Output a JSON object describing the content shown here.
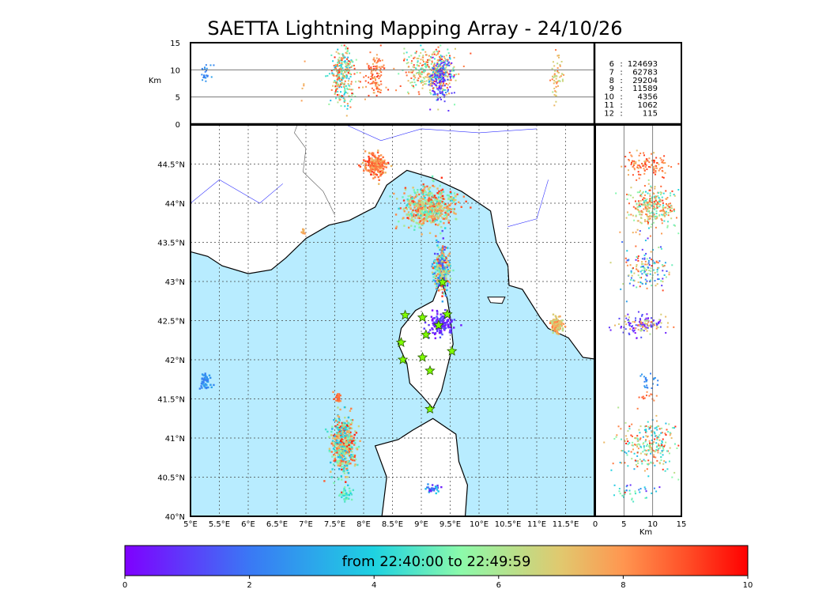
{
  "title": "SAETTA Lightning Mapping Array - 24/10/26",
  "chart_data": {
    "type": "scatter",
    "title": "SAETTA Lightning Mapping Array - 24/10/26",
    "map": {
      "lon_range": [
        5.0,
        12.0
      ],
      "lat_range": [
        40.0,
        45.0
      ],
      "lon_ticks": [
        "5°E",
        "5.5°E",
        "6°E",
        "6.5°E",
        "7°E",
        "7.5°E",
        "8°E",
        "8.5°E",
        "9°E",
        "9.5°E",
        "10°E",
        "10.5°E",
        "11°E",
        "11.5°E"
      ],
      "lat_ticks": [
        "40°N",
        "40.5°N",
        "41°N",
        "41.5°N",
        "42°N",
        "42.5°N",
        "43°N",
        "43.5°N",
        "44°N",
        "44.5°N"
      ],
      "grid": true
    },
    "altitude_panel": {
      "ylabel": "Km",
      "ylim": [
        0,
        15
      ],
      "yticks": [
        "0",
        "5",
        "10",
        "15"
      ]
    },
    "side_panel": {
      "xlabel": "Km",
      "xlim": [
        0,
        15
      ],
      "xticks": [
        "0",
        "5",
        "10",
        "15"
      ]
    },
    "stations": [
      {
        "lon": 8.72,
        "lat": 42.57
      },
      {
        "lon": 9.02,
        "lat": 42.54
      },
      {
        "lon": 9.45,
        "lat": 42.58
      },
      {
        "lon": 9.3,
        "lat": 42.44
      },
      {
        "lon": 9.08,
        "lat": 42.32
      },
      {
        "lon": 8.65,
        "lat": 42.22
      },
      {
        "lon": 9.53,
        "lat": 42.11
      },
      {
        "lon": 8.68,
        "lat": 42.0
      },
      {
        "lon": 9.02,
        "lat": 42.03
      },
      {
        "lon": 9.15,
        "lat": 41.86
      },
      {
        "lon": 9.15,
        "lat": 41.37
      },
      {
        "lon": 9.37,
        "lat": 42.99
      }
    ],
    "clusters": [
      {
        "lon": 8.2,
        "lat": 44.48,
        "slon": 0.09,
        "slat": 0.07,
        "alt": 9,
        "salt": 2,
        "n": 230,
        "t": [
          7,
          9.5
        ]
      },
      {
        "lon": 9.15,
        "lat": 43.95,
        "slon": 0.22,
        "slat": 0.12,
        "alt": 10,
        "salt": 2,
        "n": 600,
        "t": [
          4,
          9.5
        ]
      },
      {
        "lon": 9.35,
        "lat": 43.15,
        "slon": 0.07,
        "slat": 0.14,
        "alt": 9,
        "salt": 2,
        "n": 300,
        "t": [
          0.5,
          9.5
        ]
      },
      {
        "lon": 9.33,
        "lat": 42.45,
        "slon": 0.1,
        "slat": 0.07,
        "alt": 8,
        "salt": 2,
        "n": 170,
        "t": [
          0,
          1.5
        ]
      },
      {
        "lon": 11.35,
        "lat": 42.45,
        "slon": 0.06,
        "slat": 0.05,
        "alt": 9,
        "salt": 2,
        "n": 110,
        "t": [
          6,
          8.5
        ]
      },
      {
        "lon": 7.65,
        "lat": 40.9,
        "slon": 0.1,
        "slat": 0.18,
        "alt": 9,
        "salt": 2.5,
        "n": 500,
        "t": [
          3,
          9.8
        ]
      },
      {
        "lon": 5.25,
        "lat": 41.72,
        "slon": 0.05,
        "slat": 0.05,
        "alt": 9.5,
        "salt": 1,
        "n": 50,
        "t": [
          2,
          3
        ]
      },
      {
        "lon": 7.7,
        "lat": 40.27,
        "slon": 0.06,
        "slat": 0.04,
        "alt": 6,
        "salt": 2,
        "n": 40,
        "t": [
          4,
          5.5
        ]
      },
      {
        "lon": 7.55,
        "lat": 41.52,
        "slon": 0.03,
        "slat": 0.03,
        "alt": 9,
        "salt": 1,
        "n": 25,
        "t": [
          8,
          9
        ]
      },
      {
        "lon": 6.95,
        "lat": 43.63,
        "slon": 0.02,
        "slat": 0.02,
        "alt": 6,
        "salt": 2,
        "n": 10,
        "t": [
          7,
          8
        ]
      },
      {
        "lon": 9.2,
        "lat": 40.35,
        "slon": 0.06,
        "slat": 0.03,
        "alt": 8,
        "salt": 2,
        "n": 30,
        "t": [
          0,
          4
        ]
      }
    ],
    "colorbar": {
      "range": [
        0,
        10
      ],
      "ticks": [
        "0",
        "2",
        "4",
        "6",
        "8",
        "10"
      ],
      "label": "from 22:40:00 to 22:49:59"
    }
  },
  "stats": [
    {
      "level": "6",
      "count": "124693"
    },
    {
      "level": "7",
      "count": "62783",
      "highlight": "#ff0000"
    },
    {
      "level": "8",
      "count": "29204"
    },
    {
      "level": "9",
      "count": "11589"
    },
    {
      "level": "10",
      "count": "4356"
    },
    {
      "level": "11",
      "count": "1062"
    },
    {
      "level": "12",
      "count": "115"
    }
  ],
  "colors": {
    "sea": "#b8ecff",
    "land": "#ffffff",
    "highlight": "#ff0000"
  }
}
